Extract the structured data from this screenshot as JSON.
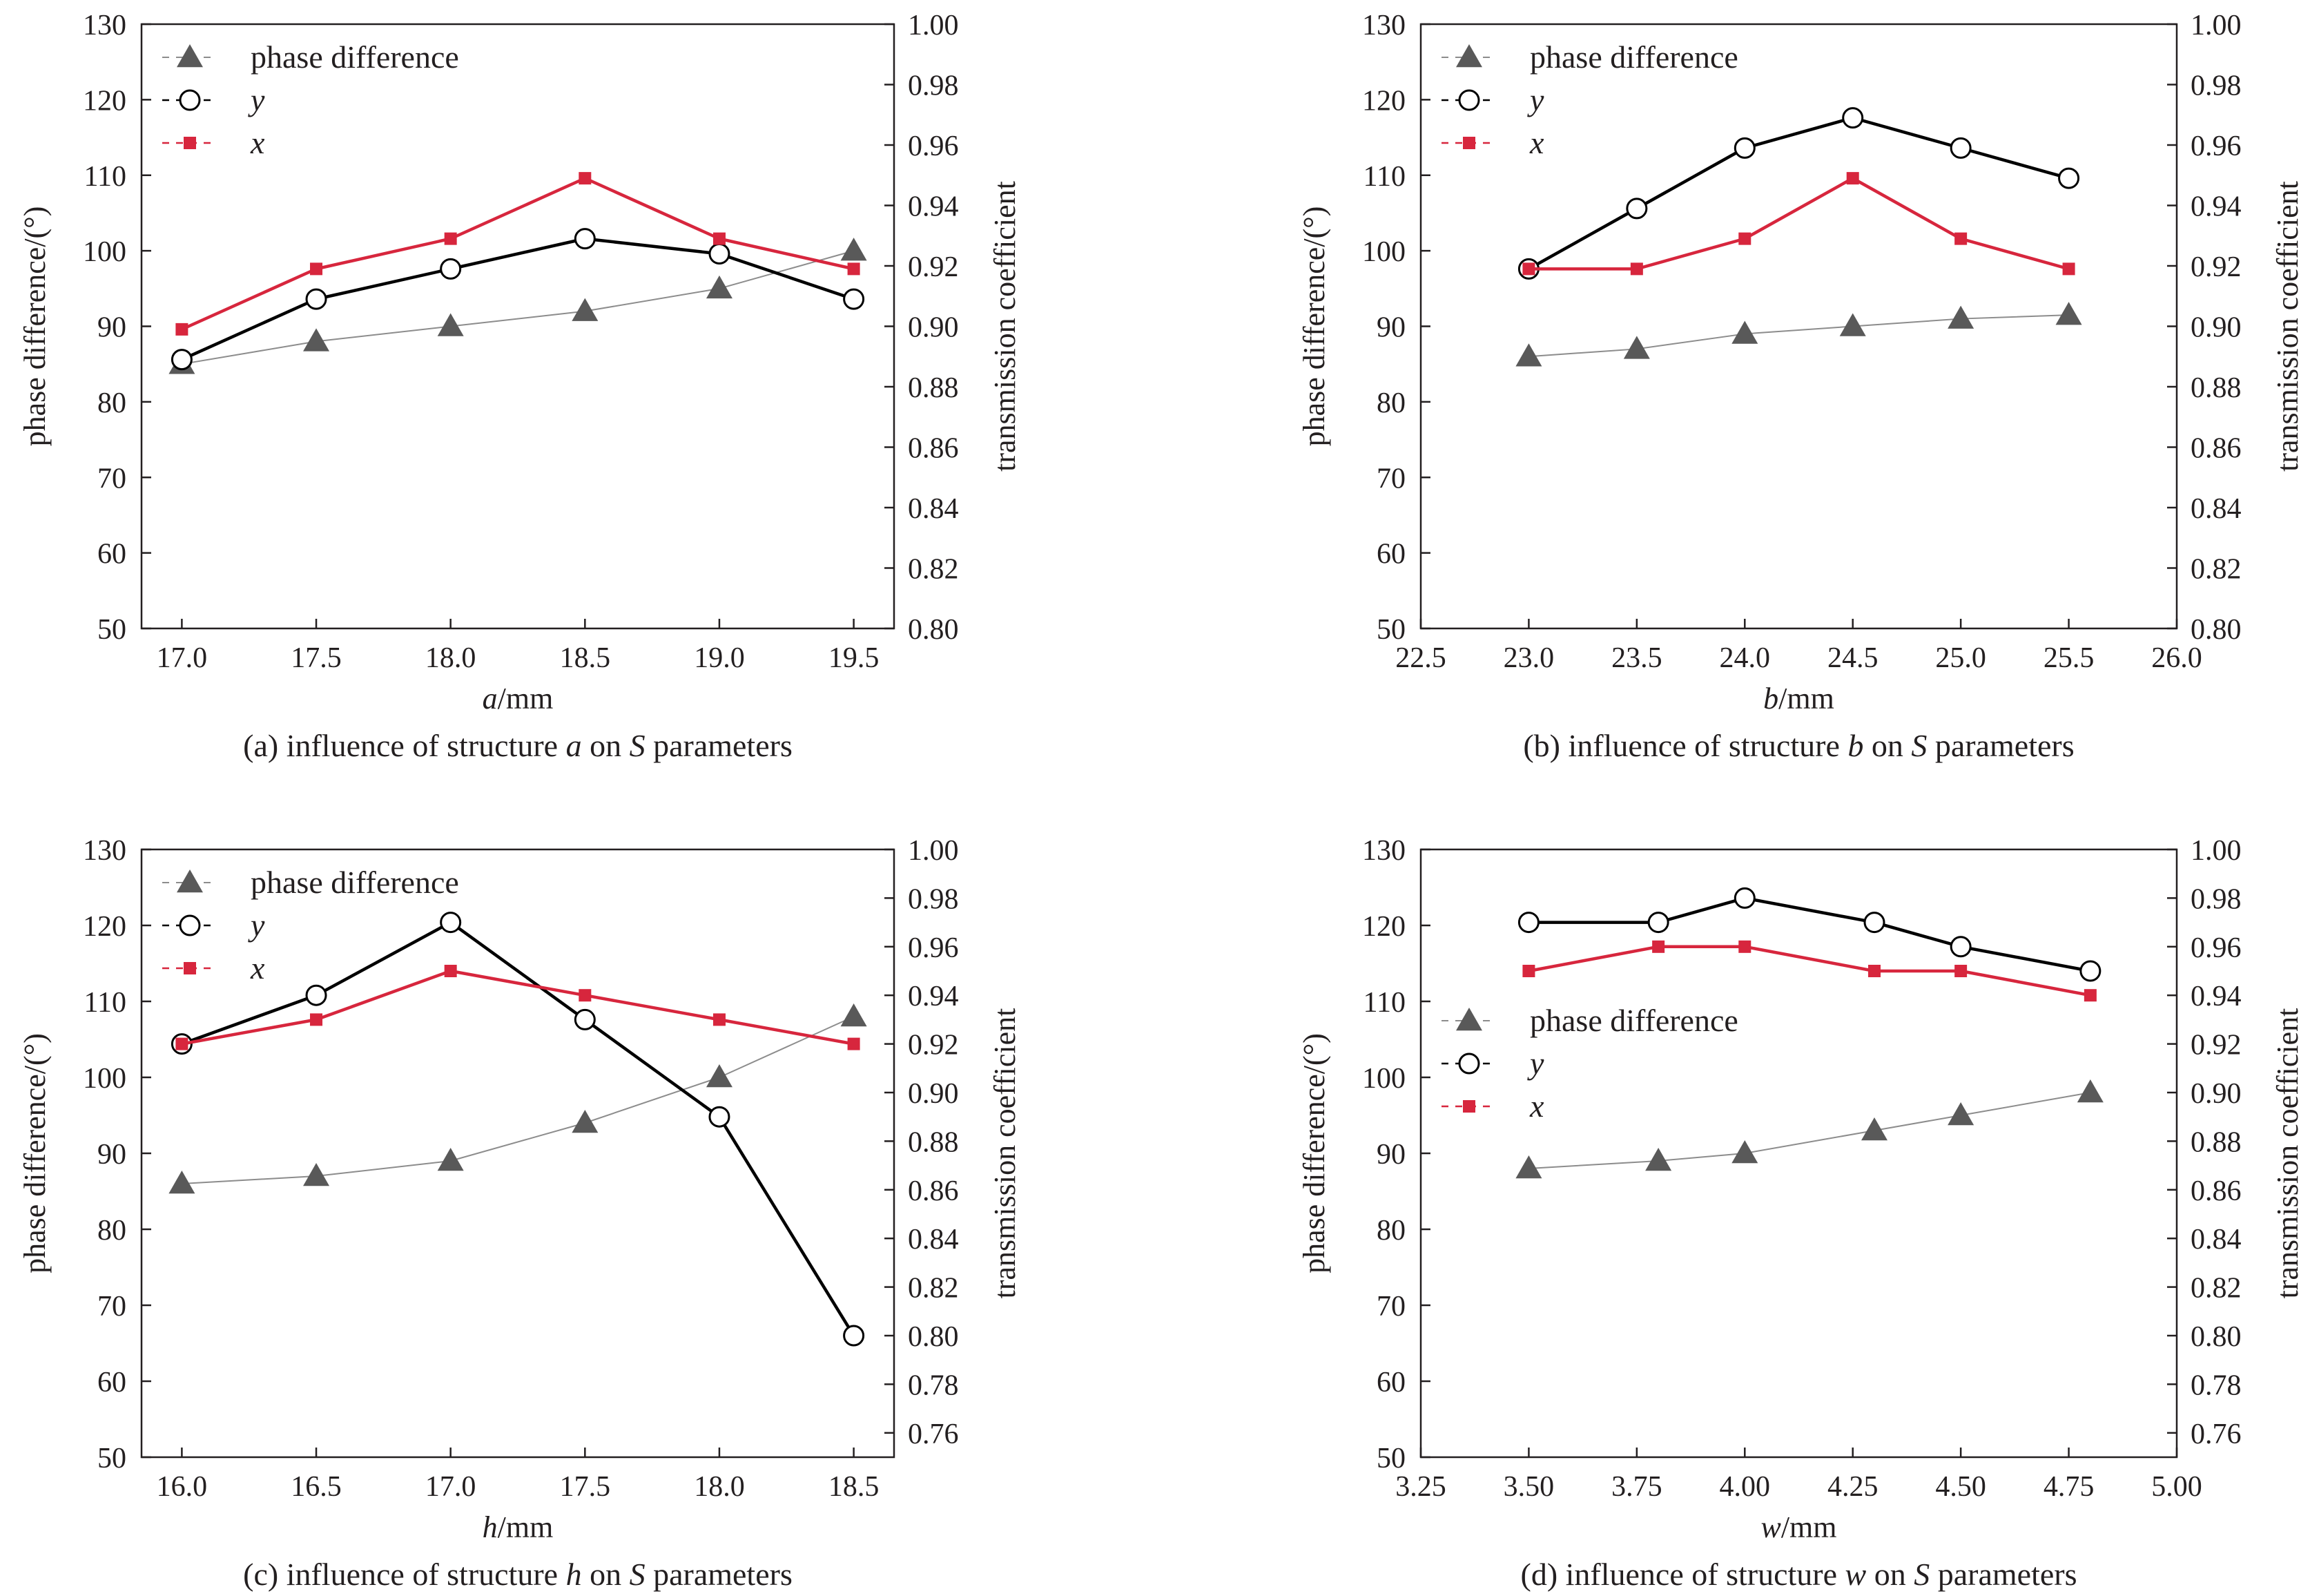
{
  "figure": {
    "colors": {
      "phase": "#595959",
      "y": "#000000",
      "x": "#d7263d",
      "phase_line": "#8c8c8c"
    },
    "markers": {
      "phase": "triangle",
      "y": "open-circle",
      "x": "square"
    },
    "legend_sample": {
      "phase": "-▲-",
      "y": "- o -",
      "x": "-■-"
    }
  },
  "chart_data": [
    {
      "type": "line",
      "caption": {
        "pre": "(a) influence of structure ",
        "var": "a",
        "mid": " on ",
        "svar": "S",
        "post": " parameters"
      },
      "xlabel": {
        "var": "a",
        "unit": "/mm"
      },
      "ylabel_left": "phase difference/(°)",
      "ylabel_right": "transmission coefficient",
      "xlim": [
        16.85,
        19.65
      ],
      "xticks": [
        "17.0",
        "17.5",
        "18.0",
        "18.5",
        "19.0",
        "19.5"
      ],
      "ylim_left": [
        50,
        130
      ],
      "yticks_left": [
        "50",
        "60",
        "70",
        "80",
        "90",
        "100",
        "110",
        "120",
        "130"
      ],
      "ylim_right": [
        0.8,
        1.0
      ],
      "yticks_right": [
        "0.80",
        "0.82",
        "0.84",
        "0.86",
        "0.88",
        "0.90",
        "0.92",
        "0.94",
        "0.96",
        "0.98",
        "1.00"
      ],
      "legend_position": "top-left",
      "x": [
        17.0,
        17.5,
        18.0,
        18.5,
        19.0,
        19.5
      ],
      "series": [
        {
          "name": "phase difference",
          "axis": "left",
          "values": [
            85,
            88,
            90,
            92,
            95,
            100
          ]
        },
        {
          "name": "y",
          "axis": "right",
          "values": [
            0.889,
            0.909,
            0.919,
            0.929,
            0.924,
            0.909
          ]
        },
        {
          "name": "x",
          "axis": "right",
          "values": [
            0.899,
            0.919,
            0.929,
            0.949,
            0.929,
            0.919
          ]
        }
      ]
    },
    {
      "type": "line",
      "caption": {
        "pre": "(b) influence of structure ",
        "var": "b",
        "mid": " on ",
        "svar": "S",
        "post": " parameters"
      },
      "xlabel": {
        "var": "b",
        "unit": "/mm"
      },
      "ylabel_left": "phase difference/(°)",
      "ylabel_right": "transmission coefficient",
      "xlim": [
        22.5,
        26.0
      ],
      "xticks": [
        "22.5",
        "23.0",
        "23.5",
        "24.0",
        "24.5",
        "25.0",
        "25.5",
        "26.0"
      ],
      "ylim_left": [
        50,
        130
      ],
      "yticks_left": [
        "50",
        "60",
        "70",
        "80",
        "90",
        "100",
        "110",
        "120",
        "130"
      ],
      "ylim_right": [
        0.8,
        1.0
      ],
      "yticks_right": [
        "0.80",
        "0.82",
        "0.84",
        "0.86",
        "0.88",
        "0.90",
        "0.92",
        "0.94",
        "0.96",
        "0.98",
        "1.00"
      ],
      "legend_position": "top-left",
      "x": [
        23.0,
        23.5,
        24.0,
        24.5,
        25.0,
        25.5
      ],
      "series": [
        {
          "name": "phase difference",
          "axis": "left",
          "values": [
            86,
            87,
            89,
            90,
            91,
            91.5
          ]
        },
        {
          "name": "y",
          "axis": "right",
          "values": [
            0.919,
            0.939,
            0.959,
            0.969,
            0.959,
            0.949
          ]
        },
        {
          "name": "x",
          "axis": "right",
          "values": [
            0.919,
            0.919,
            0.929,
            0.949,
            0.929,
            0.919
          ]
        }
      ]
    },
    {
      "type": "line",
      "caption": {
        "pre": "(c) influence of structure ",
        "var": "h",
        "mid": " on ",
        "svar": "S",
        "post": " parameters"
      },
      "xlabel": {
        "var": "h",
        "unit": "/mm"
      },
      "ylabel_left": "phase difference/(°)",
      "ylabel_right": "transmission coefficient",
      "xlim": [
        15.85,
        18.65
      ],
      "xticks": [
        "16.0",
        "16.5",
        "17.0",
        "17.5",
        "18.0",
        "18.5"
      ],
      "ylim_left": [
        50,
        130
      ],
      "yticks_left": [
        "50",
        "60",
        "70",
        "80",
        "90",
        "100",
        "110",
        "120",
        "130"
      ],
      "ylim_right": [
        0.75,
        1.0
      ],
      "yticks_right": [
        "0.76",
        "0.78",
        "0.80",
        "0.82",
        "0.84",
        "0.86",
        "0.88",
        "0.90",
        "0.92",
        "0.94",
        "0.96",
        "0.98",
        "1.00"
      ],
      "legend_position": "top-left",
      "x": [
        16.0,
        16.5,
        17.0,
        17.5,
        18.0,
        18.5
      ],
      "series": [
        {
          "name": "phase difference",
          "axis": "left",
          "values": [
            86,
            87,
            89,
            94,
            100,
            108
          ]
        },
        {
          "name": "y",
          "axis": "right",
          "values": [
            0.92,
            0.94,
            0.97,
            0.93,
            0.89,
            0.8
          ]
        },
        {
          "name": "x",
          "axis": "right",
          "values": [
            0.92,
            0.93,
            0.95,
            0.94,
            0.93,
            0.92
          ]
        }
      ]
    },
    {
      "type": "line",
      "caption": {
        "pre": "(d) influence of structure ",
        "var": "w",
        "mid": " on ",
        "svar": "S",
        "post": " parameters"
      },
      "xlabel": {
        "var": "w",
        "unit": "/mm"
      },
      "ylabel_left": "phase difference/(°)",
      "ylabel_right": "transmission coefficient",
      "xlim": [
        3.25,
        5.0
      ],
      "xticks": [
        "3.25",
        "3.50",
        "3.75",
        "4.00",
        "4.25",
        "4.50",
        "4.75",
        "5.00"
      ],
      "ylim_left": [
        50,
        130
      ],
      "yticks_left": [
        "50",
        "60",
        "70",
        "80",
        "90",
        "100",
        "110",
        "120",
        "130"
      ],
      "ylim_right": [
        0.75,
        1.0
      ],
      "yticks_right": [
        "0.76",
        "0.78",
        "0.80",
        "0.82",
        "0.84",
        "0.86",
        "0.88",
        "0.90",
        "0.92",
        "0.94",
        "0.96",
        "0.98",
        "1.00"
      ],
      "legend_position": "center-left",
      "x": [
        3.5,
        3.8,
        4.0,
        4.3,
        4.5,
        4.8
      ],
      "series": [
        {
          "name": "phase difference",
          "axis": "left",
          "values": [
            88,
            89,
            90,
            93,
            95,
            98
          ]
        },
        {
          "name": "y",
          "axis": "right",
          "values": [
            0.97,
            0.97,
            0.98,
            0.97,
            0.96,
            0.95
          ]
        },
        {
          "name": "x",
          "axis": "right",
          "values": [
            0.95,
            0.96,
            0.96,
            0.95,
            0.95,
            0.94
          ]
        }
      ]
    }
  ]
}
